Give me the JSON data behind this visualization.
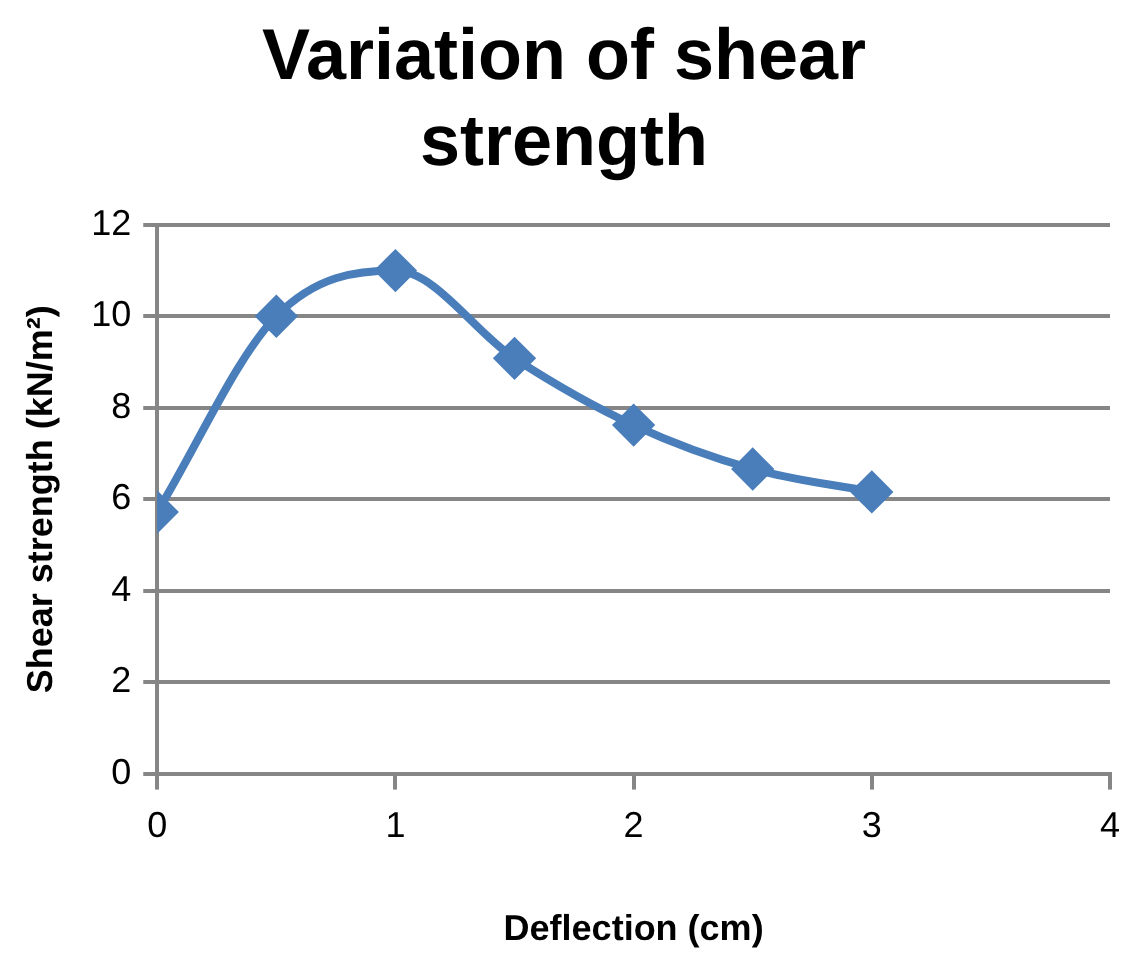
{
  "chart_data": {
    "type": "line",
    "title": "Variation of shear strength",
    "xlabel": "Deflection (cm)",
    "ylabel": "Shear strength (kN/m²)",
    "x": [
      0,
      0.5,
      1,
      1.5,
      2,
      2.5,
      3
    ],
    "series": [
      {
        "color": "#4a7ebb",
        "values": [
          5.72,
          10,
          11,
          9.08,
          7.62,
          6.66,
          6.16
        ]
      }
    ],
    "xlim": [
      0,
      4
    ],
    "xticks": [
      0,
      1,
      2,
      3,
      4
    ],
    "ylim": [
      0,
      12
    ],
    "yticks": [
      0,
      2,
      4,
      6,
      8,
      10,
      12
    ],
    "grid": "y",
    "legend": false,
    "marker": "diamond",
    "line_style": "solid"
  }
}
